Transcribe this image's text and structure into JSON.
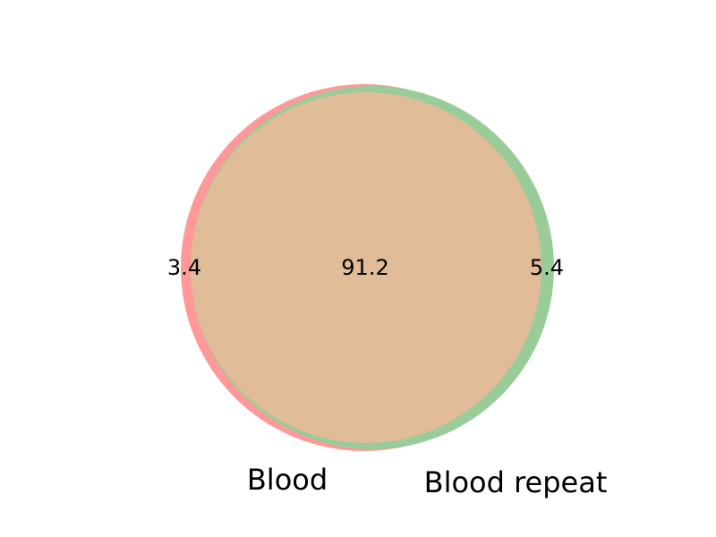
{
  "chart_data": {
    "type": "venn",
    "sets": [
      {
        "name": "Blood",
        "color": "#ff9999"
      },
      {
        "name": "Blood repeat",
        "color": "#99cc99"
      }
    ],
    "regions": [
      {
        "id": "only_a",
        "label": "3.4",
        "value": 3.4
      },
      {
        "id": "overlap",
        "label": "91.2",
        "value": 91.2
      },
      {
        "id": "only_b",
        "label": "5.4",
        "value": 5.4
      }
    ],
    "overlap_color": "#e0bc98"
  }
}
